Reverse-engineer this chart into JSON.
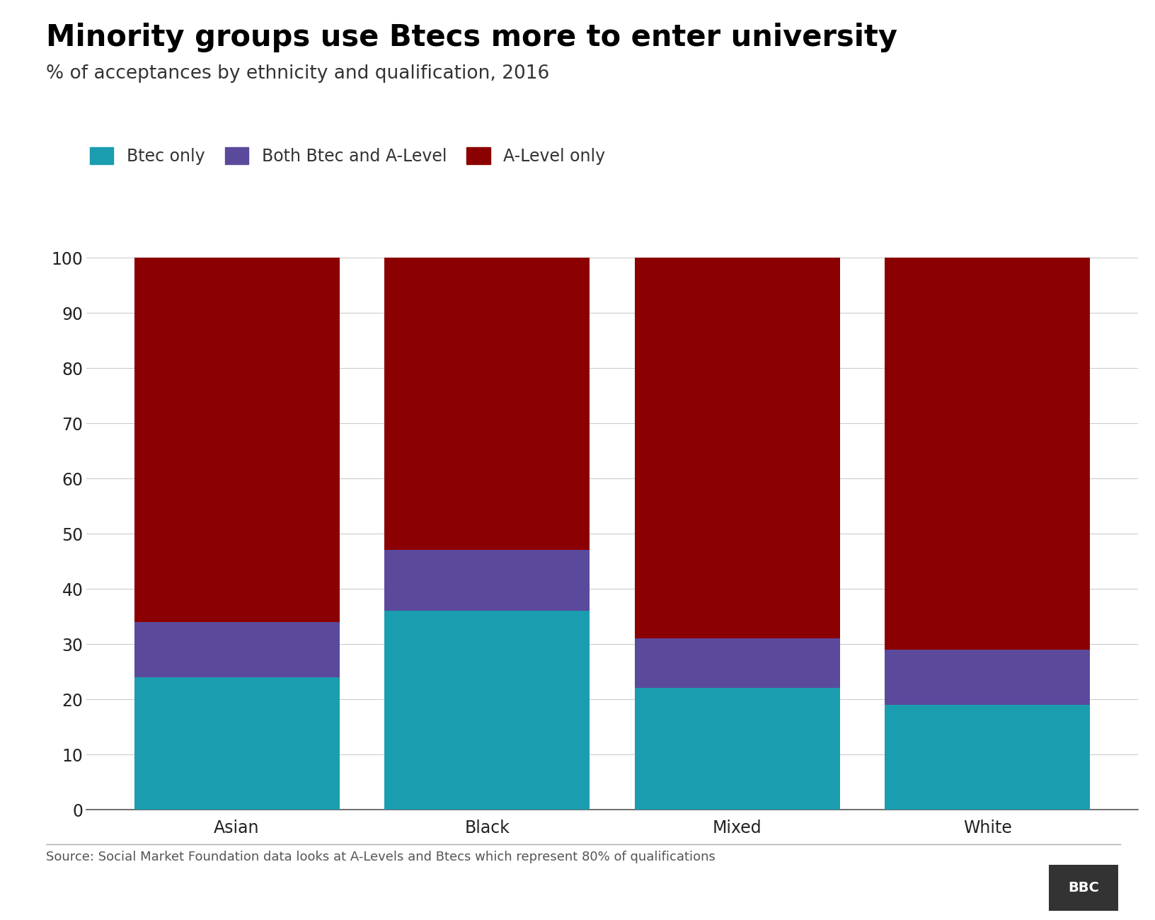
{
  "title": "Minority groups use Btecs more to enter university",
  "subtitle": "% of acceptances by ethnicity and qualification, 2016",
  "categories": [
    "Asian",
    "Black",
    "Mixed",
    "White"
  ],
  "btec_only": [
    24,
    36,
    22,
    19
  ],
  "both": [
    10,
    11,
    9,
    10
  ],
  "alevel_only": [
    66,
    53,
    69,
    71
  ],
  "color_btec": "#1A9DAF",
  "color_both": "#5B4A9C",
  "color_alevel": "#8B0000",
  "legend_labels": [
    "Btec only",
    "Both Btec and A-Level",
    "A-Level only"
  ],
  "source_text": "Source: Social Market Foundation data looks at A-Levels and Btecs which represent 80% of qualifications",
  "bbc_text": "BBC",
  "ylim": [
    0,
    100
  ],
  "yticks": [
    0,
    10,
    20,
    30,
    40,
    50,
    60,
    70,
    80,
    90,
    100
  ],
  "bar_width": 0.82,
  "title_fontsize": 30,
  "subtitle_fontsize": 19,
  "tick_fontsize": 17,
  "legend_fontsize": 17,
  "source_fontsize": 13,
  "background_color": "#FFFFFF"
}
